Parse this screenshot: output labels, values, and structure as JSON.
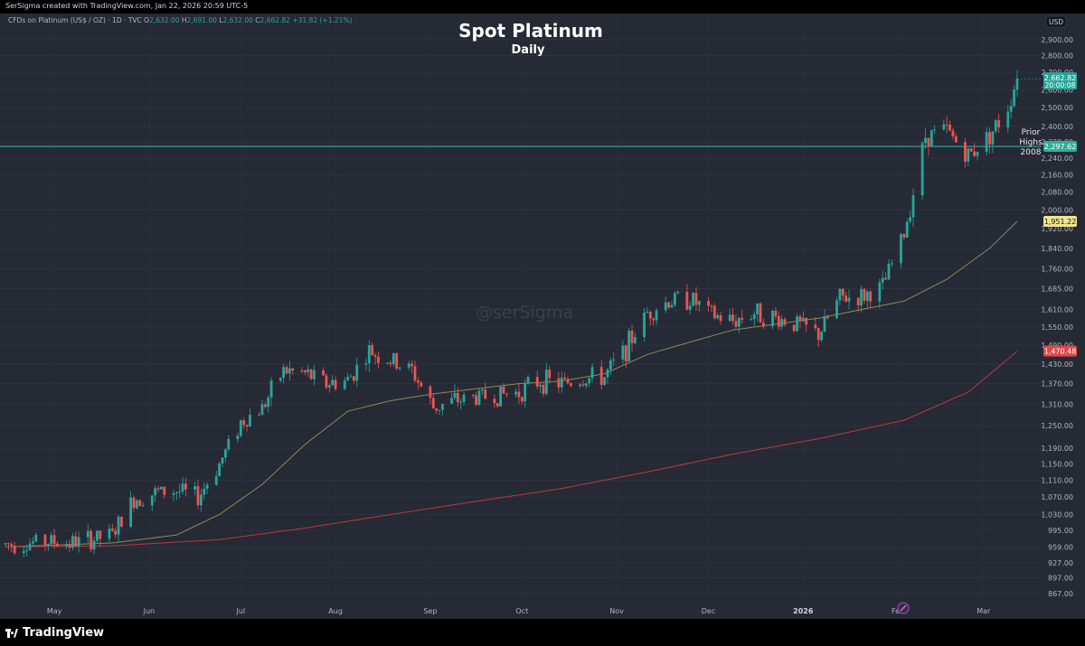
{
  "header": {
    "credit": "SerSigma created with TradingView.com, Jan 22, 2026 20:59 UTC-5"
  },
  "legend": {
    "symbol": "CFDs on Platinum (US$ / OZ) · 1D · TVC",
    "o_label": "O",
    "o_value": "2,632.00",
    "h_label": "H",
    "h_value": "2,691.00",
    "l_label": "L",
    "l_value": "2,632.00",
    "c_label": "C",
    "c_value": "2,662.82",
    "change": "+31.82 (+1.21%)"
  },
  "footer": {
    "brand": "TradingView"
  },
  "colors": {
    "up": "#26a69a",
    "down": "#ef5350",
    "background": "#262a35",
    "ma_short": "#8b8a5a",
    "ma_long": "#b83a3f",
    "resistance": "#2bb09a"
  },
  "chart_data": {
    "type": "candlestick",
    "title": "Spot Platinum",
    "subtitle": "Daily",
    "watermark": "@serSigma",
    "currency": "USD",
    "y_ticks": [
      "2,900.00",
      "2,800.00",
      "2,700.00",
      "2,600.00",
      "2,500.00",
      "2,400.00",
      "2,320.00",
      "2,240.00",
      "2,160.00",
      "2,080.00",
      "2,000.00",
      "1,920.00",
      "1,840.00",
      "1,760.00",
      "1,685.00",
      "1,610.00",
      "1,550.00",
      "1,490.00",
      "1,430.00",
      "1,370.00",
      "1,310.00",
      "1,250.00",
      "1,190.00",
      "1,150.00",
      "1,110.00",
      "1,070.00",
      "1,030.00",
      "995.00",
      "959.00",
      "927.00",
      "897.00",
      "867.00"
    ],
    "y_scale": "log",
    "ylim": [
      850,
      2980
    ],
    "x_ticks": [
      {
        "label": "May",
        "date": "2025-05-01"
      },
      {
        "label": "Jun",
        "date": "2025-06-01"
      },
      {
        "label": "Jul",
        "date": "2025-07-01"
      },
      {
        "label": "Aug",
        "date": "2025-08-01"
      },
      {
        "label": "Sep",
        "date": "2025-09-01"
      },
      {
        "label": "Oct",
        "date": "2025-10-01"
      },
      {
        "label": "Nov",
        "date": "2025-11-01"
      },
      {
        "label": "Dec",
        "date": "2025-12-01"
      },
      {
        "label": "2026",
        "date": "2026-01-01",
        "bold": true
      },
      {
        "label": "Feb",
        "date": "2026-02-01"
      },
      {
        "label": "Mar",
        "date": "2026-03-01"
      }
    ],
    "xlim": [
      "2025-04-15",
      "2026-03-20"
    ],
    "closes": [
      [
        "2025-04-15",
        965
      ],
      [
        "2025-04-22",
        968
      ],
      [
        "2025-04-29",
        972
      ],
      [
        "2025-05-06",
        968
      ],
      [
        "2025-05-13",
        975
      ],
      [
        "2025-05-20",
        985
      ],
      [
        "2025-05-27",
        1065
      ],
      [
        "2025-06-03",
        1080
      ],
      [
        "2025-06-10",
        1085
      ],
      [
        "2025-06-17",
        1070
      ],
      [
        "2025-06-24",
        1150
      ],
      [
        "2025-07-01",
        1260
      ],
      [
        "2025-07-08",
        1300
      ],
      [
        "2025-07-15",
        1410
      ],
      [
        "2025-07-22",
        1400
      ],
      [
        "2025-07-29",
        1370
      ],
      [
        "2025-08-05",
        1380
      ],
      [
        "2025-08-12",
        1470
      ],
      [
        "2025-08-19",
        1440
      ],
      [
        "2025-08-26",
        1410
      ],
      [
        "2025-09-02",
        1300
      ],
      [
        "2025-09-09",
        1320
      ],
      [
        "2025-09-16",
        1330
      ],
      [
        "2025-09-23",
        1335
      ],
      [
        "2025-09-30",
        1345
      ],
      [
        "2025-10-07",
        1380
      ],
      [
        "2025-10-14",
        1370
      ],
      [
        "2025-10-21",
        1385
      ],
      [
        "2025-10-28",
        1390
      ],
      [
        "2025-11-04",
        1480
      ],
      [
        "2025-11-11",
        1600
      ],
      [
        "2025-11-18",
        1640
      ],
      [
        "2025-11-25",
        1650
      ],
      [
        "2025-12-02",
        1590
      ],
      [
        "2025-12-09",
        1570
      ],
      [
        "2025-12-16",
        1600
      ],
      [
        "2025-12-23",
        1580
      ],
      [
        "2025-12-30",
        1560
      ],
      [
        "2026-01-06",
        1525
      ],
      [
        "2026-01-13",
        1650
      ],
      [
        "2026-01-20",
        1655
      ],
      [
        "2026-01-27",
        1690
      ],
      [
        "2026-02-03",
        1900
      ],
      [
        "2026-02-10",
        2350
      ],
      [
        "2026-02-17",
        2380
      ],
      [
        "2026-02-24",
        2250
      ],
      [
        "2026-03-03",
        2360
      ],
      [
        "2026-03-08",
        2460
      ],
      [
        "2026-03-12",
        2662.82
      ]
    ],
    "series": [
      {
        "name": "",
        "type": "moving_average",
        "color": "#8b8a5a",
        "points": [
          [
            "2025-04-15",
            960
          ],
          [
            "2025-05-20",
            968
          ],
          [
            "2025-06-10",
            985
          ],
          [
            "2025-06-24",
            1030
          ],
          [
            "2025-07-08",
            1100
          ],
          [
            "2025-07-22",
            1200
          ],
          [
            "2025-08-05",
            1290
          ],
          [
            "2025-08-19",
            1320
          ],
          [
            "2025-09-02",
            1340
          ],
          [
            "2025-09-16",
            1355
          ],
          [
            "2025-09-30",
            1370
          ],
          [
            "2025-10-14",
            1378
          ],
          [
            "2025-10-28",
            1400
          ],
          [
            "2025-11-11",
            1460
          ],
          [
            "2025-11-25",
            1500
          ],
          [
            "2025-12-09",
            1540
          ],
          [
            "2025-12-23",
            1560
          ],
          [
            "2026-01-06",
            1580
          ],
          [
            "2026-01-20",
            1610
          ],
          [
            "2026-02-03",
            1640
          ],
          [
            "2026-02-17",
            1720
          ],
          [
            "2026-03-03",
            1840
          ],
          [
            "2026-03-12",
            1951.22
          ]
        ],
        "last_value": "1,951.22"
      },
      {
        "name": "",
        "type": "moving_average",
        "color": "#b83a3f",
        "points": [
          [
            "2025-04-15",
            960
          ],
          [
            "2025-05-20",
            962
          ],
          [
            "2025-06-24",
            975
          ],
          [
            "2025-07-22",
            1000
          ],
          [
            "2025-08-19",
            1030
          ],
          [
            "2025-09-16",
            1060
          ],
          [
            "2025-10-14",
            1090
          ],
          [
            "2025-11-11",
            1130
          ],
          [
            "2025-12-09",
            1175
          ],
          [
            "2026-01-06",
            1215
          ],
          [
            "2026-02-03",
            1265
          ],
          [
            "2026-02-24",
            1345
          ],
          [
            "2026-03-12",
            1470.48
          ]
        ],
        "last_value": "1,470.48"
      }
    ],
    "annotations": [
      {
        "type": "horizontal_line",
        "value": 2297.62,
        "label": "2,297.62",
        "text": [
          "Prior",
          "Highs",
          "2008"
        ]
      }
    ],
    "last_price": {
      "value": 2662.82,
      "label": "2,662.82",
      "time": "20:00:08"
    }
  }
}
